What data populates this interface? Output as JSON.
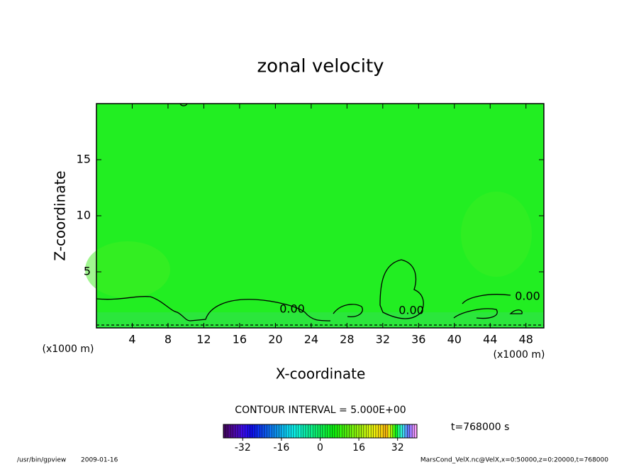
{
  "chart_data": {
    "type": "contour",
    "title": "zonal velocity",
    "xlabel": "X-coordinate",
    "ylabel": "Z-coordinate",
    "x_unit": "(x1000 m)",
    "xlim": [
      0,
      50
    ],
    "xticks": [
      4,
      8,
      12,
      16,
      20,
      24,
      28,
      32,
      36,
      40,
      44,
      48
    ],
    "ylim": [
      0,
      20
    ],
    "yticks": [
      5,
      10,
      15
    ],
    "fill_color": "#22ee22",
    "contour_labels": [
      "0.00",
      "0.00",
      "0.00"
    ],
    "contour_interval": "CONTOUR INTERVAL = 5.000E+00",
    "time": "t=768000 s",
    "colorbar": {
      "lim": [
        -40,
        40
      ],
      "ticks": [
        -32,
        -16,
        0,
        16,
        32
      ]
    },
    "footer": {
      "program": "/usr/bin/gpview",
      "date": "2009-01-16",
      "source": "MarsCond_VelX.nc@VelX,x=0:50000,z=0:20000,t=768000"
    }
  }
}
